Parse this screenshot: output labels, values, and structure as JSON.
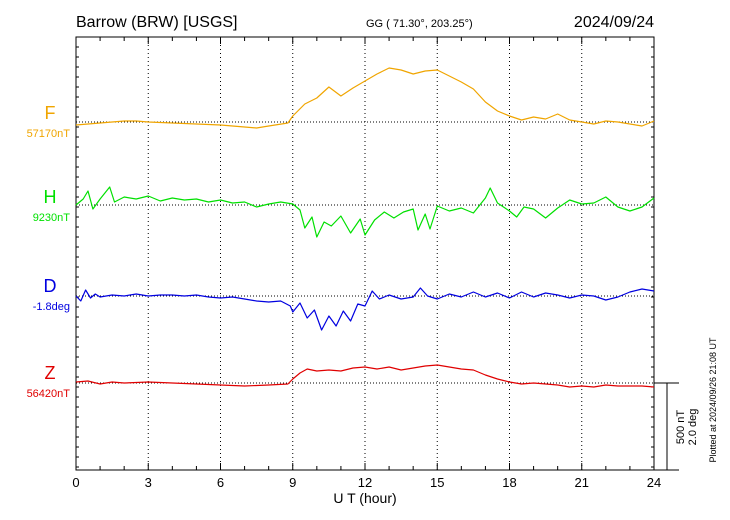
{
  "header": {
    "station": "Barrow (BRW)  [USGS]",
    "coords": "GG ( 71.30°, 203.25°)",
    "date": "2024/09/24"
  },
  "footer": {
    "plotted": "Plotted at 2024/09/26 21:08 UT"
  },
  "scale": {
    "label_nt": "500 nT",
    "label_deg": "2.0 deg"
  },
  "chart_data": {
    "type": "line",
    "xlabel": "U T (hour)",
    "xlim": [
      0,
      24
    ],
    "xticks": [
      0,
      3,
      6,
      9,
      12,
      15,
      18,
      21,
      24
    ],
    "grid": true,
    "series": [
      {
        "name": "F",
        "baseline": "57170nT",
        "color": "#f0a500",
        "points": [
          [
            0,
            -6
          ],
          [
            0.5,
            -4
          ],
          [
            1,
            -2
          ],
          [
            1.5,
            0
          ],
          [
            2,
            2
          ],
          [
            2.5,
            2
          ],
          [
            3,
            0
          ],
          [
            4,
            -2
          ],
          [
            5,
            -4
          ],
          [
            6,
            -6
          ],
          [
            7,
            -10
          ],
          [
            7.5,
            -12
          ],
          [
            8,
            -8
          ],
          [
            8.8,
            -2
          ],
          [
            9,
            12
          ],
          [
            9.5,
            36
          ],
          [
            10,
            48
          ],
          [
            10.5,
            70
          ],
          [
            11,
            52
          ],
          [
            11.5,
            68
          ],
          [
            12,
            82
          ],
          [
            12.5,
            96
          ],
          [
            13,
            108
          ],
          [
            13.5,
            104
          ],
          [
            14,
            96
          ],
          [
            14.5,
            102
          ],
          [
            15,
            104
          ],
          [
            15.5,
            92
          ],
          [
            16,
            80
          ],
          [
            16.5,
            66
          ],
          [
            17,
            40
          ],
          [
            17.5,
            22
          ],
          [
            18,
            12
          ],
          [
            18.5,
            4
          ],
          [
            19,
            10
          ],
          [
            19.5,
            6
          ],
          [
            20,
            16
          ],
          [
            20.5,
            4
          ],
          [
            21,
            0
          ],
          [
            21.5,
            -4
          ],
          [
            22,
            2
          ],
          [
            22.5,
            0
          ],
          [
            23,
            -4
          ],
          [
            23.5,
            -8
          ],
          [
            24,
            2
          ]
        ]
      },
      {
        "name": "H",
        "baseline": "9230nT",
        "color": "#00e000",
        "points": [
          [
            0,
            0
          ],
          [
            0.3,
            12
          ],
          [
            0.5,
            28
          ],
          [
            0.7,
            -8
          ],
          [
            1,
            12
          ],
          [
            1.4,
            36
          ],
          [
            1.6,
            6
          ],
          [
            2,
            16
          ],
          [
            2.5,
            12
          ],
          [
            3,
            18
          ],
          [
            3.5,
            8
          ],
          [
            4,
            14
          ],
          [
            4.5,
            10
          ],
          [
            5,
            12
          ],
          [
            5.5,
            6
          ],
          [
            6,
            10
          ],
          [
            6.5,
            4
          ],
          [
            7,
            6
          ],
          [
            7.5,
            -4
          ],
          [
            8,
            2
          ],
          [
            8.5,
            6
          ],
          [
            9,
            2
          ],
          [
            9.3,
            -10
          ],
          [
            9.5,
            -46
          ],
          [
            9.8,
            -24
          ],
          [
            10,
            -64
          ],
          [
            10.3,
            -34
          ],
          [
            10.6,
            -42
          ],
          [
            11,
            -22
          ],
          [
            11.4,
            -56
          ],
          [
            11.8,
            -28
          ],
          [
            12,
            -60
          ],
          [
            12.4,
            -30
          ],
          [
            12.8,
            -14
          ],
          [
            13.2,
            -26
          ],
          [
            13.6,
            -14
          ],
          [
            14,
            -8
          ],
          [
            14.2,
            -50
          ],
          [
            14.5,
            -18
          ],
          [
            14.7,
            -48
          ],
          [
            15,
            -2
          ],
          [
            15.5,
            -12
          ],
          [
            16,
            -6
          ],
          [
            16.5,
            -16
          ],
          [
            17,
            14
          ],
          [
            17.2,
            34
          ],
          [
            17.5,
            4
          ],
          [
            18,
            -12
          ],
          [
            18.3,
            -24
          ],
          [
            18.6,
            -4
          ],
          [
            19,
            -8
          ],
          [
            19.5,
            -26
          ],
          [
            20,
            -6
          ],
          [
            20.5,
            10
          ],
          [
            21,
            2
          ],
          [
            21.5,
            4
          ],
          [
            22,
            16
          ],
          [
            22.5,
            -4
          ],
          [
            23,
            -12
          ],
          [
            23.5,
            -4
          ],
          [
            24,
            14
          ]
        ]
      },
      {
        "name": "D",
        "baseline": "-1.8deg",
        "color": "#0000e0",
        "points": [
          [
            0,
            0
          ],
          [
            0.2,
            -10
          ],
          [
            0.4,
            12
          ],
          [
            0.6,
            -4
          ],
          [
            0.8,
            4
          ],
          [
            1,
            -2
          ],
          [
            1.5,
            2
          ],
          [
            2,
            0
          ],
          [
            2.5,
            4
          ],
          [
            3,
            0
          ],
          [
            3.5,
            2
          ],
          [
            4,
            2
          ],
          [
            4.5,
            0
          ],
          [
            5,
            2
          ],
          [
            5.5,
            -2
          ],
          [
            6,
            -4
          ],
          [
            6.5,
            -2
          ],
          [
            7,
            -6
          ],
          [
            7.5,
            -10
          ],
          [
            8,
            -12
          ],
          [
            8.5,
            -10
          ],
          [
            8.9,
            -20
          ],
          [
            9,
            -32
          ],
          [
            9.3,
            -14
          ],
          [
            9.6,
            -44
          ],
          [
            9.9,
            -28
          ],
          [
            10.2,
            -68
          ],
          [
            10.5,
            -40
          ],
          [
            10.8,
            -60
          ],
          [
            11.1,
            -30
          ],
          [
            11.4,
            -50
          ],
          [
            11.7,
            -16
          ],
          [
            12,
            -20
          ],
          [
            12.3,
            10
          ],
          [
            12.6,
            -6
          ],
          [
            13,
            2
          ],
          [
            13.5,
            -6
          ],
          [
            14,
            -2
          ],
          [
            14.3,
            16
          ],
          [
            14.6,
            0
          ],
          [
            15,
            -6
          ],
          [
            15.5,
            4
          ],
          [
            16,
            -2
          ],
          [
            16.5,
            8
          ],
          [
            17,
            -2
          ],
          [
            17.5,
            6
          ],
          [
            18,
            -4
          ],
          [
            18.5,
            8
          ],
          [
            19,
            -2
          ],
          [
            19.5,
            6
          ],
          [
            20,
            2
          ],
          [
            20.5,
            -4
          ],
          [
            21,
            2
          ],
          [
            21.5,
            0
          ],
          [
            22,
            -8
          ],
          [
            22.5,
            -2
          ],
          [
            23,
            8
          ],
          [
            23.5,
            14
          ],
          [
            24,
            10
          ]
        ]
      },
      {
        "name": "Z",
        "baseline": "56420nT",
        "color": "#e00000",
        "points": [
          [
            0,
            2
          ],
          [
            0.5,
            4
          ],
          [
            1,
            -2
          ],
          [
            1.5,
            2
          ],
          [
            2,
            0
          ],
          [
            3,
            2
          ],
          [
            4,
            0
          ],
          [
            5,
            -2
          ],
          [
            6,
            -4
          ],
          [
            7,
            -6
          ],
          [
            8,
            -4
          ],
          [
            8.8,
            -2
          ],
          [
            9,
            8
          ],
          [
            9.3,
            20
          ],
          [
            9.6,
            28
          ],
          [
            10,
            24
          ],
          [
            10.5,
            26
          ],
          [
            11,
            24
          ],
          [
            11.5,
            30
          ],
          [
            12,
            32
          ],
          [
            12.5,
            28
          ],
          [
            13,
            32
          ],
          [
            13.5,
            26
          ],
          [
            14,
            30
          ],
          [
            14.5,
            34
          ],
          [
            15,
            36
          ],
          [
            15.5,
            32
          ],
          [
            16,
            28
          ],
          [
            16.5,
            26
          ],
          [
            17,
            16
          ],
          [
            17.5,
            8
          ],
          [
            18,
            2
          ],
          [
            18.5,
            -2
          ],
          [
            19,
            0
          ],
          [
            19.5,
            -2
          ],
          [
            20,
            -4
          ],
          [
            20.5,
            -8
          ],
          [
            21,
            -6
          ],
          [
            21.5,
            -8
          ],
          [
            22,
            -4
          ],
          [
            22.5,
            -6
          ],
          [
            23,
            -6
          ],
          [
            23.5,
            -6
          ],
          [
            24,
            -8
          ]
        ]
      }
    ]
  }
}
